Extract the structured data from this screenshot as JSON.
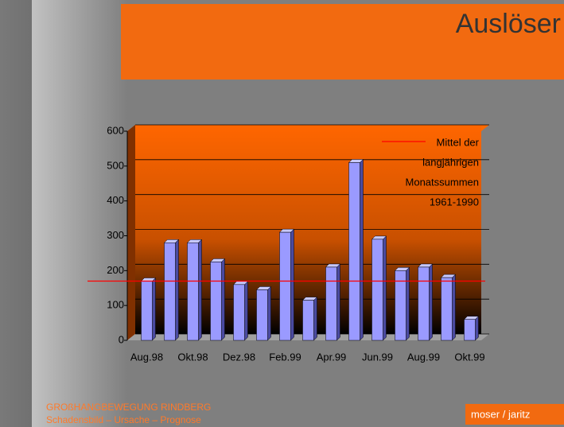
{
  "header": {
    "title": "Auslöser"
  },
  "chart_data": {
    "type": "bar",
    "categories": [
      "Aug.98",
      null,
      "Okt.98",
      null,
      "Dez.98",
      null,
      "Feb.99",
      null,
      "Apr.99",
      null,
      "Jun.99",
      null,
      "Aug.99",
      null,
      "Okt.99"
    ],
    "values": [
      170,
      280,
      280,
      225,
      160,
      145,
      310,
      115,
      210,
      510,
      290,
      200,
      210,
      180,
      60
    ],
    "color": "#9a9aff",
    "ylim": [
      0,
      600
    ],
    "yticks": [
      0,
      100,
      200,
      300,
      400,
      500,
      600
    ],
    "grid": true,
    "reference_line": {
      "name_lines": [
        "Mittel der",
        "langjährigen",
        "Monatssummen",
        "1961-1990"
      ],
      "value": 170,
      "color": "#ff0000"
    }
  },
  "footer": {
    "lines": [
      "GROßHANGBEWEGUNG RINDBERG",
      "Schadensbild – Ursache – Prognose"
    ],
    "logo": "moser / jaritz"
  }
}
